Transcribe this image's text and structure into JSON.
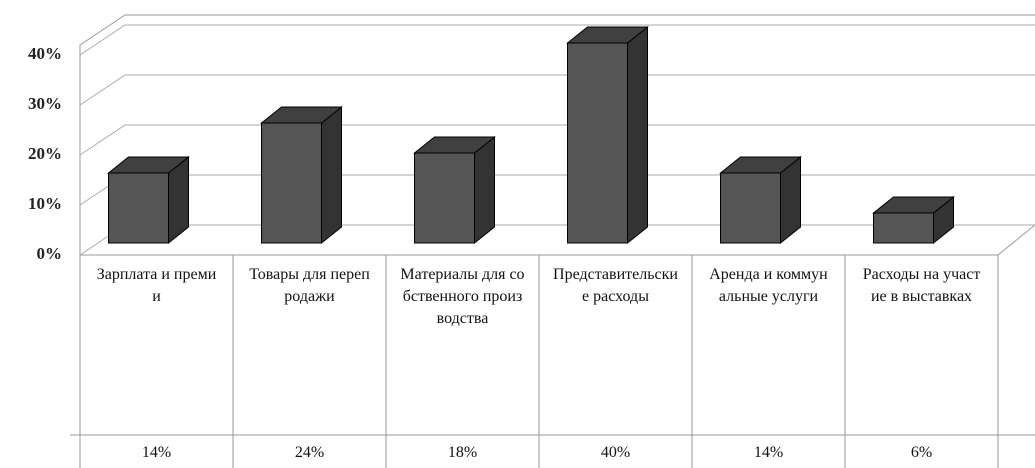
{
  "chart_data": {
    "type": "bar",
    "categories": [
      "Зарплата и премии",
      "Товары для перепродажи",
      "Материалы для собственного производства",
      "Представительские расходы",
      "Аренда и коммунальные услуги",
      "Расходы на участие в выставках"
    ],
    "values": [
      14,
      24,
      18,
      40,
      14,
      6
    ],
    "value_labels": [
      "14%",
      "24%",
      "18%",
      "40%",
      "14%",
      "6%"
    ],
    "color": "#555555",
    "ylim": [
      0,
      42
    ],
    "yticks": [
      {
        "value": 0,
        "label": "0%"
      },
      {
        "value": 10,
        "label": "10%"
      },
      {
        "value": 20,
        "label": "20%"
      },
      {
        "value": 30,
        "label": "30%"
      },
      {
        "value": 40,
        "label": "40%"
      }
    ],
    "grid": true
  }
}
